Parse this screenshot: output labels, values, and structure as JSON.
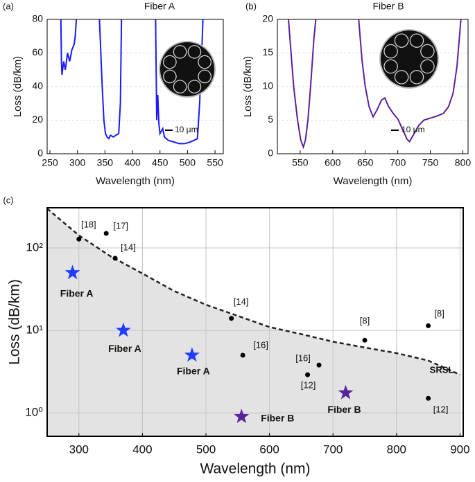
{
  "chart_data": [
    {
      "type": "line",
      "panel_label": "(a)",
      "title": "Fiber A",
      "xlabel": "Wavelength (nm)",
      "ylabel": "Loss (dB/km)",
      "xlim": [
        245,
        565
      ],
      "ylim": [
        0,
        80
      ],
      "xticks": [
        250,
        300,
        350,
        400,
        450,
        500,
        550
      ],
      "yticks": [
        0,
        20,
        40,
        60,
        80
      ],
      "grid": true,
      "inset_scale_bar": "10 μm",
      "series": [
        {
          "color": "#1a1aff",
          "x": [
            270,
            271,
            272,
            275,
            278,
            282,
            286,
            290,
            294,
            296,
            298,
            null,
            340,
            345,
            348,
            351,
            354,
            357,
            360,
            365,
            370,
            375,
            378,
            380,
            null,
            442,
            444,
            446,
            448,
            450,
            455,
            458,
            465,
            475,
            485,
            495,
            505,
            512,
            518,
            522,
            526,
            528
          ],
          "values": [
            80,
            55,
            47,
            55,
            50,
            60,
            55,
            62,
            65,
            70,
            80,
            null,
            80,
            40,
            20,
            12,
            10,
            9,
            11,
            10,
            11,
            12,
            30,
            80,
            null,
            80,
            20,
            35,
            18,
            12,
            15,
            10,
            8,
            7,
            6,
            6,
            7,
            8,
            9,
            30,
            60,
            80
          ]
        }
      ]
    },
    {
      "type": "line",
      "panel_label": "(b)",
      "title": "Fiber B",
      "xlabel": "Wavelength (nm)",
      "ylabel": "Loss (dB/km)",
      "xlim": [
        515,
        808
      ],
      "ylim": [
        0,
        20
      ],
      "xticks": [
        550,
        600,
        650,
        700,
        750,
        800
      ],
      "yticks": [
        0,
        5,
        10,
        15,
        20
      ],
      "grid": true,
      "inset_scale_bar": "10 μm",
      "series": [
        {
          "color": "#5b1f9e",
          "x": [
            532,
            540,
            546,
            551,
            555,
            558,
            562,
            566,
            571,
            574,
            null,
            640,
            645,
            650,
            656,
            662,
            668,
            675,
            680,
            686,
            693,
            700,
            708,
            714,
            718,
            724,
            732,
            740,
            750,
            760,
            770,
            778,
            785,
            791,
            797
          ],
          "values": [
            20,
            10,
            5,
            2,
            1,
            2,
            5,
            10,
            17,
            20,
            null,
            20,
            14,
            10,
            7,
            5.5,
            6.5,
            8,
            8.3,
            7,
            6,
            5.2,
            3.5,
            2.2,
            1.8,
            2.8,
            4.2,
            5,
            5.3,
            5.6,
            6,
            7,
            9,
            13,
            20
          ]
        }
      ]
    },
    {
      "type": "scatter",
      "panel_label": "(c)",
      "xlabel": "Wavelength (nm)",
      "ylabel": "Loss (dB/km)",
      "xlim": [
        250,
        905
      ],
      "ylim": [
        0.52,
        307
      ],
      "log_y": true,
      "xticks": [
        300,
        400,
        500,
        600,
        700,
        800,
        900
      ],
      "yticks": [
        {
          "value": 1,
          "label": "10⁰"
        },
        {
          "value": 10,
          "label": "10¹"
        },
        {
          "value": 100,
          "label": "10²"
        }
      ],
      "grid": true,
      "series": [
        {
          "name": "SRSL",
          "color": "#222222",
          "fill": "#e3e3e3",
          "style": "dashed",
          "x": [
            250,
            300,
            350,
            400,
            450,
            500,
            550,
            600,
            650,
            700,
            750,
            800,
            850,
            900
          ],
          "values": [
            300,
            142,
            79,
            49,
            30,
            20.5,
            15,
            11,
            9,
            7.3,
            6.2,
            5.3,
            4.3,
            2.9
          ]
        },
        {
          "color": "#000000",
          "marker": "dot",
          "x": [
            300,
            343,
            357,
            540,
            558,
            678,
            660,
            750,
            850,
            850
          ],
          "values": [
            128,
            150,
            75,
            14,
            5,
            3.8,
            2.9,
            7.6,
            11.4,
            1.5
          ],
          "labels": [
            "[18]",
            "[17]",
            "[14]",
            "[14]",
            "[16]",
            "[16]",
            "[12]",
            "[8]",
            "[8]",
            "[12]"
          ]
        },
        {
          "color": "#1f3cff",
          "marker": "star",
          "x": [
            290,
            370,
            478
          ],
          "values": [
            50,
            10,
            5
          ],
          "labels": [
            "Fiber A",
            "Fiber A",
            "Fiber A"
          ]
        },
        {
          "color": "#55249a",
          "marker": "star",
          "x": [
            556,
            720
          ],
          "values": [
            0.9,
            1.75
          ],
          "labels": [
            "Fiber B",
            "Fiber B"
          ]
        }
      ]
    }
  ]
}
